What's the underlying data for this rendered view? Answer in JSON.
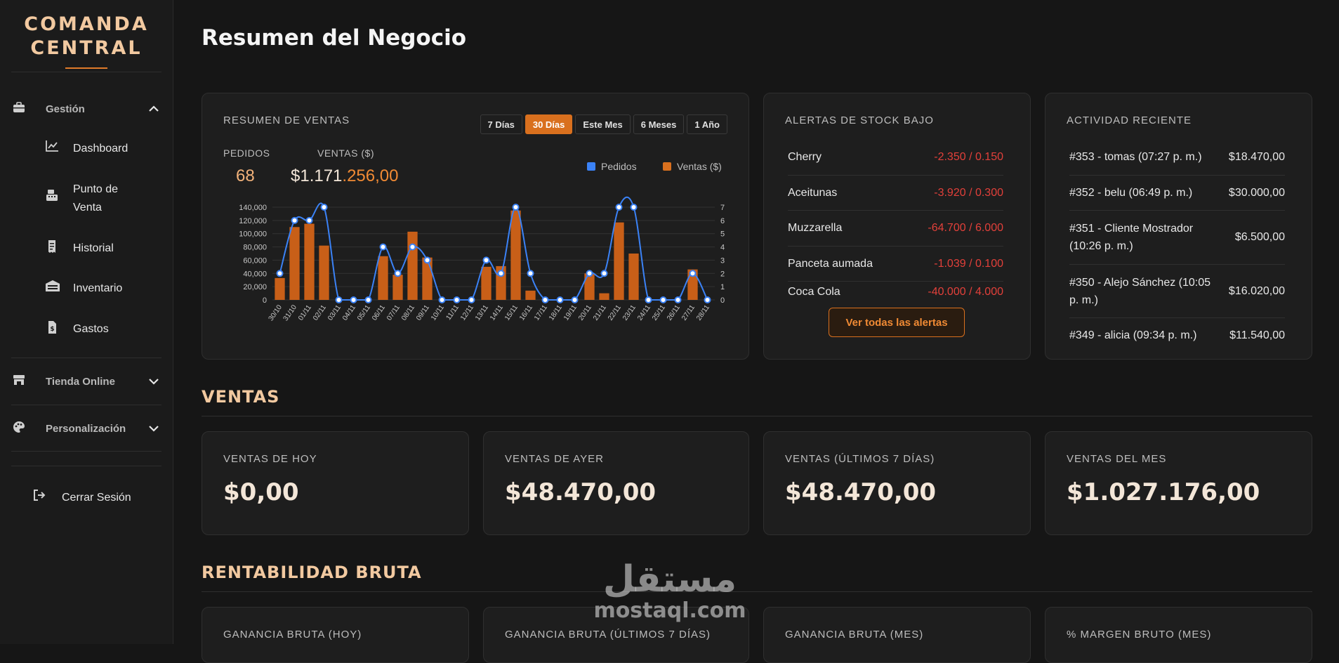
{
  "brand": {
    "line1": "COMANDA",
    "line2": "CENTRAL"
  },
  "sidebar": {
    "group_gestion": {
      "label": "Gestión",
      "icon": "briefcase-icon"
    },
    "items": [
      {
        "label": "Dashboard",
        "icon": "chart-line-icon"
      },
      {
        "label": "Punto de Venta",
        "icon": "cash-register-icon"
      },
      {
        "label": "Historial",
        "icon": "receipt-icon"
      },
      {
        "label": "Inventario",
        "icon": "warehouse-icon"
      },
      {
        "label": "Gastos",
        "icon": "invoice-icon"
      }
    ],
    "group_tienda": {
      "label": "Tienda Online",
      "icon": "store-icon"
    },
    "group_personalizacion": {
      "label": "Personalización",
      "icon": "palette-icon"
    },
    "logout": {
      "label": "Cerrar Sesión",
      "icon": "logout-icon"
    }
  },
  "page_title": "Resumen del Negocio",
  "sales_summary": {
    "title": "RESUMEN DE VENTAS",
    "periods": [
      "7 Días",
      "30 Días",
      "Este Mes",
      "6 Meses",
      "1 Año"
    ],
    "active_period": "30 Días",
    "orders_label": "PEDIDOS",
    "orders_value": "68",
    "sales_label": "VENTAS ($)",
    "sales_value_white": "$1.171",
    "sales_value_orange": ".256,00"
  },
  "colors": {
    "accent": "#d9701e",
    "orders_line": "#3b82f6",
    "bars": "#c85f18",
    "negative": "#e2403a",
    "brand_text": "#f2c9a0"
  },
  "chart_data": {
    "type": "bar",
    "categories": [
      "30/10",
      "31/10",
      "01/11",
      "02/11",
      "03/11",
      "04/11",
      "05/11",
      "06/11",
      "07/11",
      "08/11",
      "09/11",
      "10/11",
      "11/11",
      "12/11",
      "13/11",
      "14/11",
      "15/11",
      "16/11",
      "17/11",
      "18/11",
      "19/11",
      "20/11",
      "21/11",
      "22/11",
      "23/11",
      "24/11",
      "25/11",
      "26/11",
      "27/11",
      "28/11"
    ],
    "series": [
      {
        "name": "Ventas ($)",
        "axis": "left",
        "type": "bar",
        "values": [
          33000,
          110000,
          115000,
          82000,
          0,
          0,
          0,
          66000,
          38000,
          103000,
          64000,
          0,
          0,
          0,
          50000,
          51000,
          135000,
          14000,
          0,
          0,
          0,
          40000,
          10000,
          117000,
          70000,
          0,
          0,
          0,
          46000,
          0
        ]
      },
      {
        "name": "Pedidos",
        "axis": "right",
        "type": "line",
        "values": [
          2,
          6,
          6,
          7,
          0,
          0,
          0,
          4,
          2,
          4,
          3,
          0,
          0,
          0,
          3,
          2,
          7,
          2,
          0,
          0,
          0,
          2,
          2,
          7,
          7,
          0,
          0,
          0,
          2,
          0
        ]
      }
    ],
    "y_left_ticks": [
      "0",
      "20,000",
      "40,000",
      "60,000",
      "80,000",
      "100,000",
      "120,000",
      "140,000"
    ],
    "y_right_ticks": [
      "0",
      "1",
      "2",
      "3",
      "4",
      "5",
      "6",
      "7"
    ],
    "ylim_left": [
      0,
      140000
    ],
    "ylim_right": [
      0,
      7
    ],
    "legend": "top-right",
    "grid": true
  },
  "stock_alerts": {
    "title": "ALERTAS DE STOCK BAJO",
    "items": [
      {
        "name": "Cherry",
        "value": "-2.350 / 0.150"
      },
      {
        "name": "Aceitunas",
        "value": "-3.920 / 0.300"
      },
      {
        "name": "Muzzarella",
        "value": "-64.700 / 6.000"
      },
      {
        "name": "Panceta aumada",
        "value": "-1.039 / 0.100"
      },
      {
        "name": "Coca Cola",
        "value": "-40.000 / 4.000"
      }
    ],
    "button": "Ver todas las alertas"
  },
  "activity": {
    "title": "ACTIVIDAD RECIENTE",
    "items": [
      {
        "text": "#353 - tomas (07:27 p. m.)",
        "amount": "$18.470,00"
      },
      {
        "text": "#352 - belu (06:49 p. m.)",
        "amount": "$30.000,00"
      },
      {
        "text": "#351 - Cliente Mostrador (10:26 p. m.)",
        "amount": "$6.500,00"
      },
      {
        "text": "#350 - Alejo Sánchez (10:05 p. m.)",
        "amount": "$16.020,00"
      },
      {
        "text": "#349 - alicia (09:34 p. m.)",
        "amount": "$11.540,00"
      }
    ]
  },
  "ventas_section": {
    "title": "VENTAS",
    "cards": [
      {
        "label": "VENTAS DE HOY",
        "value": "$0,00"
      },
      {
        "label": "VENTAS DE AYER",
        "value": "$48.470,00"
      },
      {
        "label": "VENTAS (ÚLTIMOS 7 DÍAS)",
        "value": "$48.470,00"
      },
      {
        "label": "VENTAS DEL MES",
        "value": "$1.027.176,00"
      }
    ]
  },
  "rentabilidad_section": {
    "title": "RENTABILIDAD BRUTA",
    "cards": [
      {
        "label": "GANANCIA BRUTA (HOY)"
      },
      {
        "label": "GANANCIA BRUTA (ÚLTIMOS 7 DÍAS)"
      },
      {
        "label": "GANANCIA BRUTA (MES)"
      },
      {
        "label": "% MARGEN BRUTO (MES)"
      }
    ]
  },
  "watermark": {
    "arabic": "مستقل",
    "latin": "mostaql.com"
  }
}
